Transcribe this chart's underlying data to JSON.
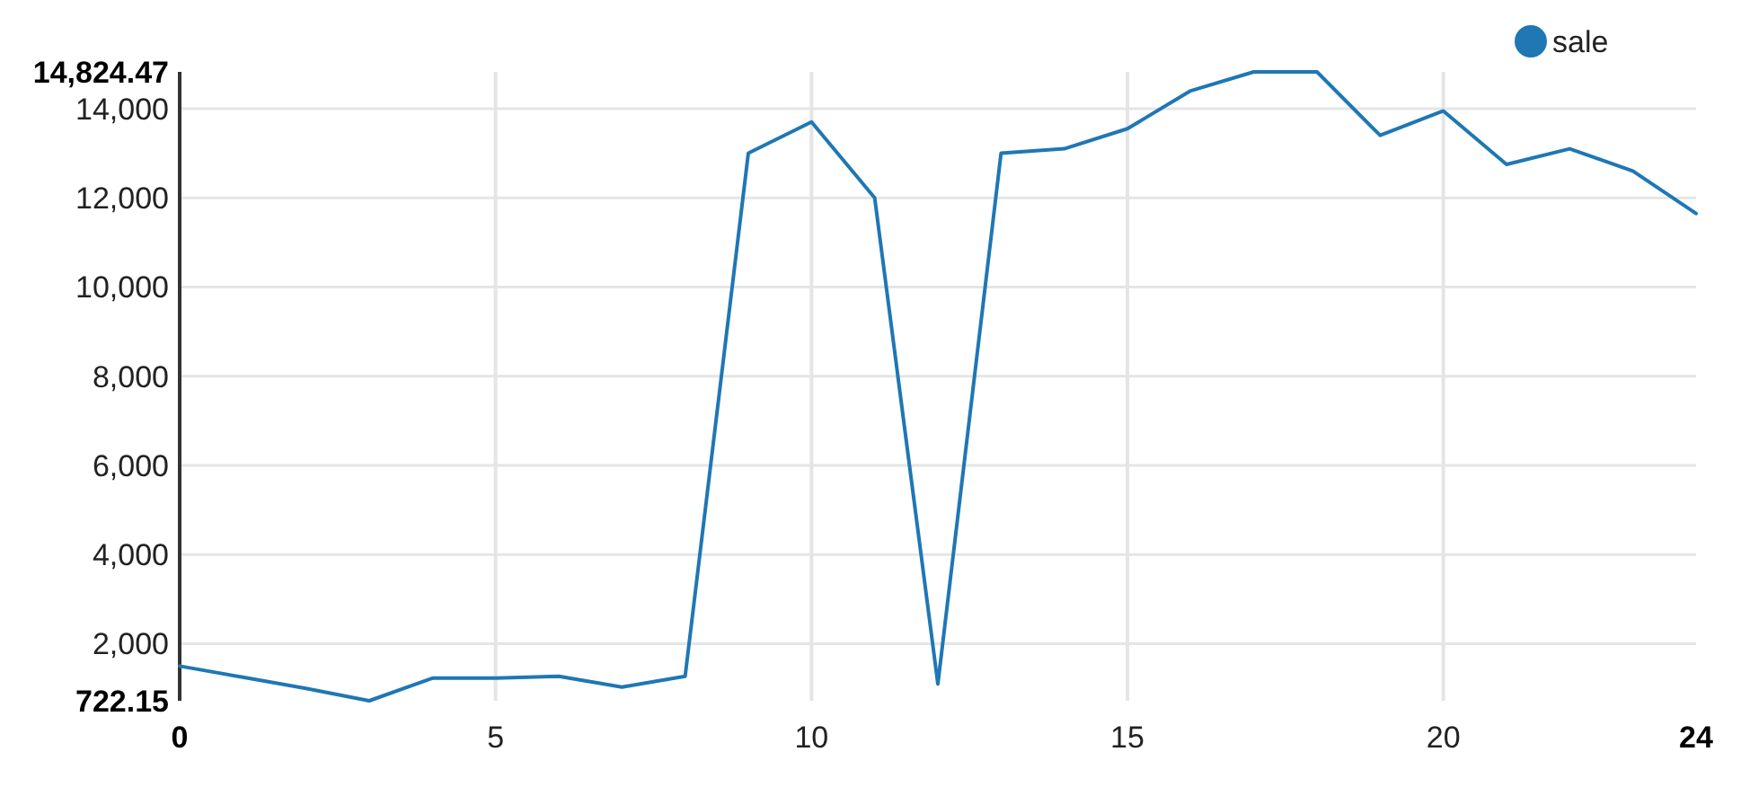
{
  "chart_data": {
    "type": "line",
    "x": [
      0,
      1,
      2,
      3,
      4,
      5,
      6,
      7,
      8,
      9,
      10,
      11,
      12,
      13,
      14,
      15,
      16,
      17,
      18,
      19,
      20,
      21,
      22,
      23,
      24
    ],
    "series": [
      {
        "name": "sale",
        "color": "#1f77b4",
        "values": [
          1500,
          1250,
          1000,
          722.15,
          1230,
          1230,
          1270,
          1030,
          1270,
          13000,
          13700,
          12000,
          1100,
          13000,
          13100,
          13550,
          14400,
          14824.47,
          14824.47,
          13400,
          13950,
          12750,
          13100,
          12600,
          11650
        ]
      }
    ],
    "xlim": [
      0,
      24
    ],
    "xticks": [
      0,
      5,
      10,
      15,
      20,
      24
    ],
    "ylim": [
      722.15,
      14824.47
    ],
    "yticks": [
      {
        "value": 722.15,
        "label": "722.15"
      },
      {
        "value": 2000,
        "label": "2,000"
      },
      {
        "value": 4000,
        "label": "4,000"
      },
      {
        "value": 6000,
        "label": "6,000"
      },
      {
        "value": 8000,
        "label": "8,000"
      },
      {
        "value": 10000,
        "label": "10,000"
      },
      {
        "value": 12000,
        "label": "12,000"
      },
      {
        "value": 14000,
        "label": "14,000"
      },
      {
        "value": 14824.47,
        "label": "14,824.47"
      }
    ],
    "grid": true,
    "legend": "top right",
    "marker": "none",
    "line_style": "solid"
  }
}
